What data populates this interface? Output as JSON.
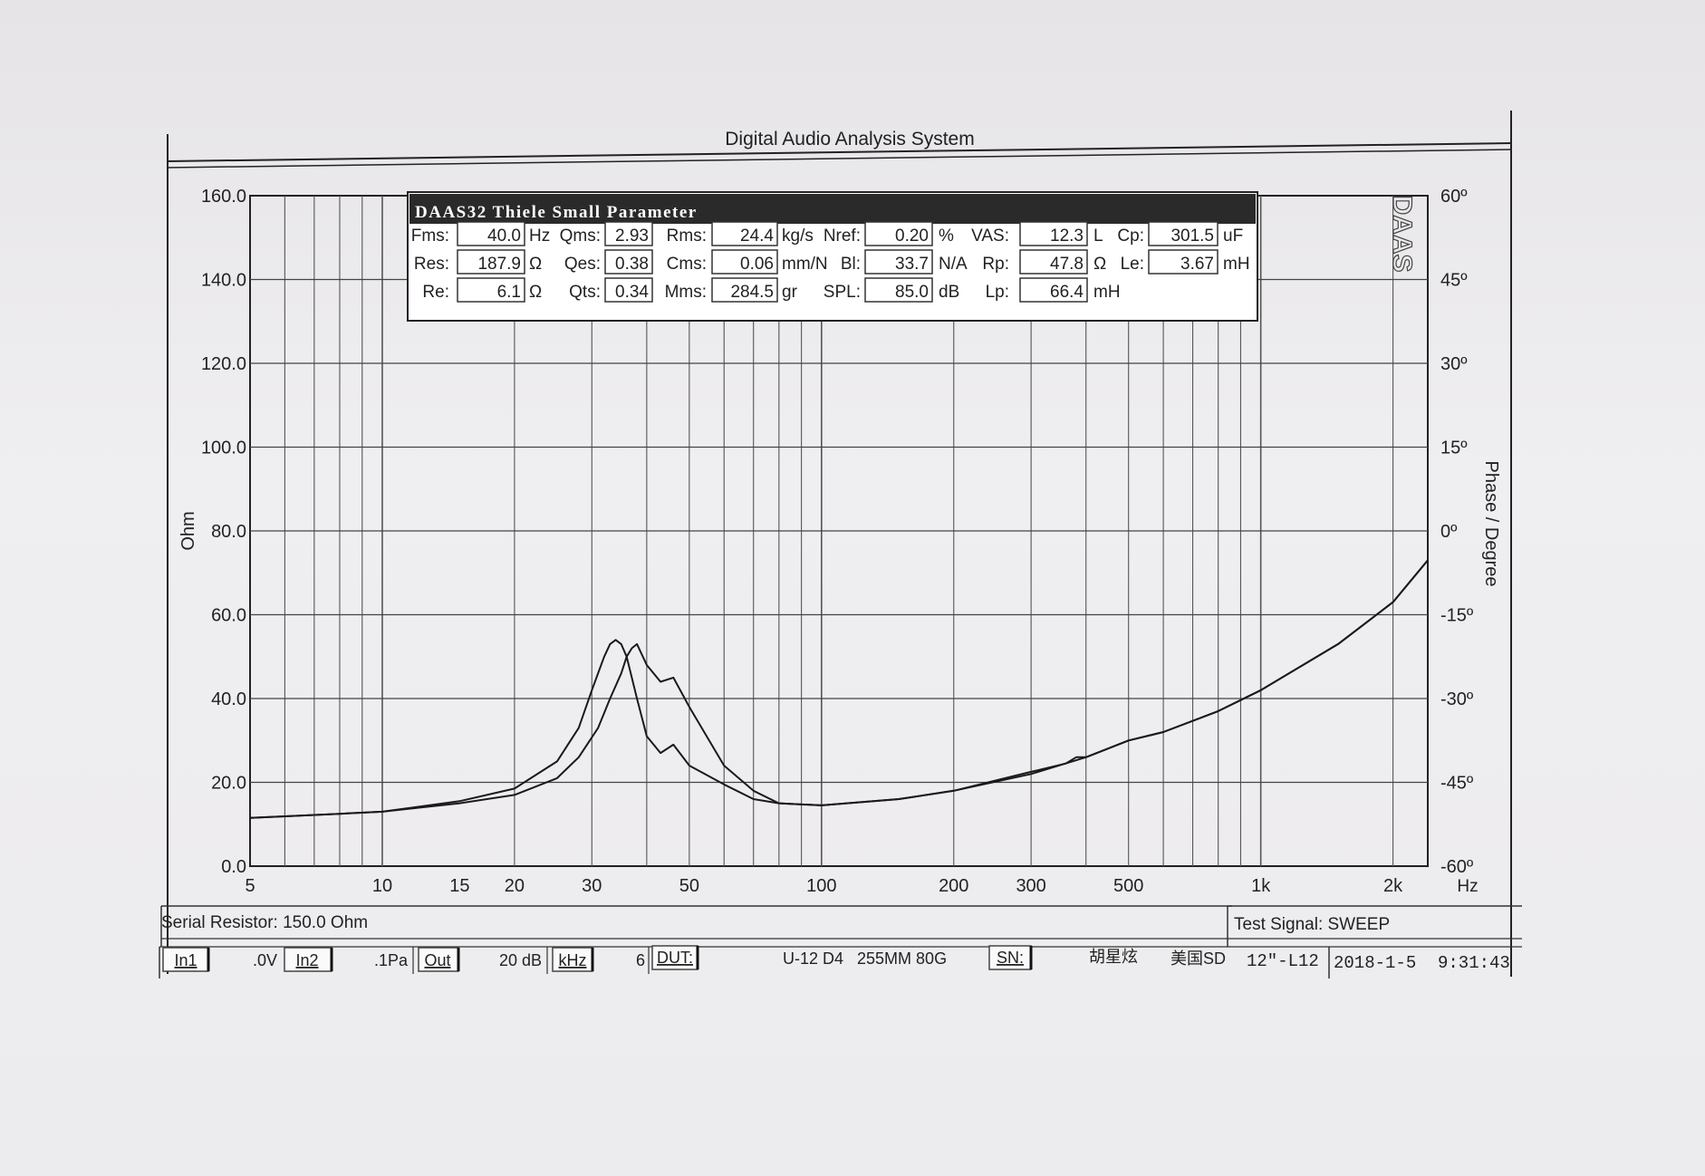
{
  "header": {
    "title": "Digital Audio Analysis System"
  },
  "params_panel": {
    "title": "DAAS32 Thiele Small Parameter",
    "rows": [
      [
        {
          "label": "Fms:",
          "value": "40.0",
          "unit": "Hz"
        },
        {
          "label": "Qms:",
          "value": "2.93",
          "unit": ""
        },
        {
          "label": "Rms:",
          "value": "24.4",
          "unit": "kg/s"
        },
        {
          "label": "Nref:",
          "value": "0.20",
          "unit": "%"
        },
        {
          "label": "VAS:",
          "value": "12.3",
          "unit": "L"
        },
        {
          "label": "Cp:",
          "value": "301.5",
          "unit": "uF"
        }
      ],
      [
        {
          "label": "Res:",
          "value": "187.9",
          "unit": "Ω"
        },
        {
          "label": "Qes:",
          "value": "0.38",
          "unit": ""
        },
        {
          "label": "Cms:",
          "value": "0.06",
          "unit": "mm/N"
        },
        {
          "label": "Bl:",
          "value": "33.7",
          "unit": "N/A"
        },
        {
          "label": "Rp:",
          "value": "47.8",
          "unit": "Ω"
        },
        {
          "label": "Le:",
          "value": "3.67",
          "unit": "mH"
        }
      ],
      [
        {
          "label": "Re:",
          "value": "6.1",
          "unit": "Ω"
        },
        {
          "label": "Qts:",
          "value": "0.34",
          "unit": ""
        },
        {
          "label": "Mms:",
          "value": "284.5",
          "unit": "gr"
        },
        {
          "label": "SPL:",
          "value": "85.0",
          "unit": "dB"
        },
        {
          "label": "Lp:",
          "value": "66.4",
          "unit": "mH"
        }
      ]
    ]
  },
  "logo_text": "DAAS",
  "chart_data": {
    "type": "line",
    "xscale": "log",
    "xlim": [
      5,
      2400
    ],
    "ylim": [
      0,
      160
    ],
    "y2lim": [
      -60,
      60
    ],
    "grid": true,
    "ylabel": "Ohm",
    "y2label": "Phase / Degree",
    "xunit": "Hz",
    "x_ticks": [
      {
        "v": 5,
        "label": "5"
      },
      {
        "v": 10,
        "label": "10"
      },
      {
        "v": 15,
        "label": "15"
      },
      {
        "v": 20,
        "label": "20"
      },
      {
        "v": 30,
        "label": "30"
      },
      {
        "v": 50,
        "label": "50"
      },
      {
        "v": 100,
        "label": "100"
      },
      {
        "v": 200,
        "label": "200"
      },
      {
        "v": 300,
        "label": "300"
      },
      {
        "v": 500,
        "label": "500"
      },
      {
        "v": 1000,
        "label": "1k"
      },
      {
        "v": 2000,
        "label": "2k"
      }
    ],
    "y_ticks": [
      {
        "v": 0,
        "label": "0.0"
      },
      {
        "v": 20,
        "label": "20.0"
      },
      {
        "v": 40,
        "label": "40.0"
      },
      {
        "v": 60,
        "label": "60.0"
      },
      {
        "v": 80,
        "label": "80.0"
      },
      {
        "v": 100,
        "label": "100.0"
      },
      {
        "v": 120,
        "label": "120.0"
      },
      {
        "v": 140,
        "label": "140.0"
      },
      {
        "v": 160,
        "label": "160.0"
      }
    ],
    "y2_ticks": [
      {
        "v": 60,
        "label": "60º"
      },
      {
        "v": 45,
        "label": "45º"
      },
      {
        "v": 30,
        "label": "30º"
      },
      {
        "v": 15,
        "label": "15º"
      },
      {
        "v": 0,
        "label": "0º"
      },
      {
        "v": -15,
        "label": "-15º"
      },
      {
        "v": -30,
        "label": "-30º"
      },
      {
        "v": -45,
        "label": "-45º"
      },
      {
        "v": -60,
        "label": "-60º"
      }
    ],
    "series": [
      {
        "x": [
          5,
          8,
          10,
          15,
          20,
          25,
          28,
          31,
          33,
          35,
          36,
          37,
          38,
          40,
          43,
          46,
          50,
          60,
          70,
          80,
          100,
          150,
          200,
          300,
          400,
          500,
          600,
          800,
          1000,
          1500,
          2000,
          2400
        ],
        "y": [
          11.5,
          12.5,
          13,
          15,
          17,
          21,
          26,
          33,
          40,
          46,
          50,
          52,
          53,
          48,
          44,
          45,
          38,
          24,
          18,
          15,
          14.5,
          16,
          18,
          22,
          26,
          30,
          32,
          37,
          42,
          53,
          63,
          73
        ]
      },
      {
        "x": [
          5,
          8,
          10,
          15,
          20,
          25,
          28,
          30,
          32,
          33,
          34,
          35,
          36,
          38,
          40,
          43,
          46,
          50,
          60,
          70,
          80,
          100,
          150,
          200,
          300,
          360,
          380,
          400,
          500,
          600,
          800,
          1000,
          1500,
          2000,
          2400
        ],
        "y": [
          11.5,
          12.5,
          13,
          15.5,
          18.5,
          25,
          33,
          42,
          50,
          53,
          54,
          53,
          50,
          40,
          31,
          27,
          29,
          24,
          19.5,
          16,
          15,
          14.5,
          16,
          18,
          22.5,
          24.5,
          26,
          26,
          30,
          32,
          37,
          42,
          53,
          63,
          73
        ]
      }
    ]
  },
  "status": {
    "serial_resistor": "Serial Resistor: 150.0 Ohm",
    "test_signal": "Test Signal: SWEEP",
    "in1": "In1",
    "v_level": ".0V",
    "in2": "In2",
    "pa_level": ".1Pa",
    "out": "Out",
    "db_level": "20 dB",
    "khz": "kHz",
    "six": "6",
    "dut": "DUT:",
    "model": "U-12 D4   255MM 80G",
    "sn": "SN:",
    "chinese": "胡星炫",
    "country_sd": "美国SD",
    "size": "12\"-L12",
    "date": "2018-1-5",
    "time": "9:31:43"
  }
}
